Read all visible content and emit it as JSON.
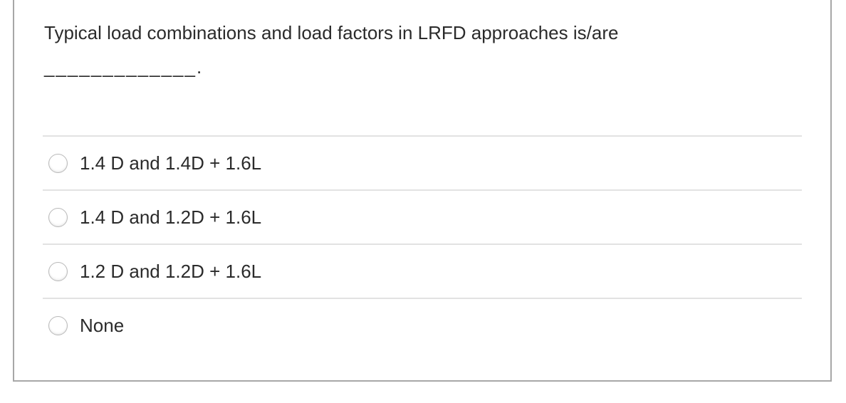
{
  "question": {
    "text": "Typical load combinations and load factors in LRFD approaches is/are",
    "blank": "_____________."
  },
  "options": [
    {
      "label": "1.4 D and 1.4D + 1.6L",
      "selected": false
    },
    {
      "label": "1.4 D and 1.2D + 1.6L",
      "selected": false
    },
    {
      "label": "1.2 D and 1.2D + 1.6L",
      "selected": false
    },
    {
      "label": "None",
      "selected": false
    }
  ],
  "colors": {
    "text": "#2b2b2b",
    "card_border": "#a7a7a7",
    "divider": "#e2e2e2",
    "radio_border": "#b9b9b9"
  }
}
